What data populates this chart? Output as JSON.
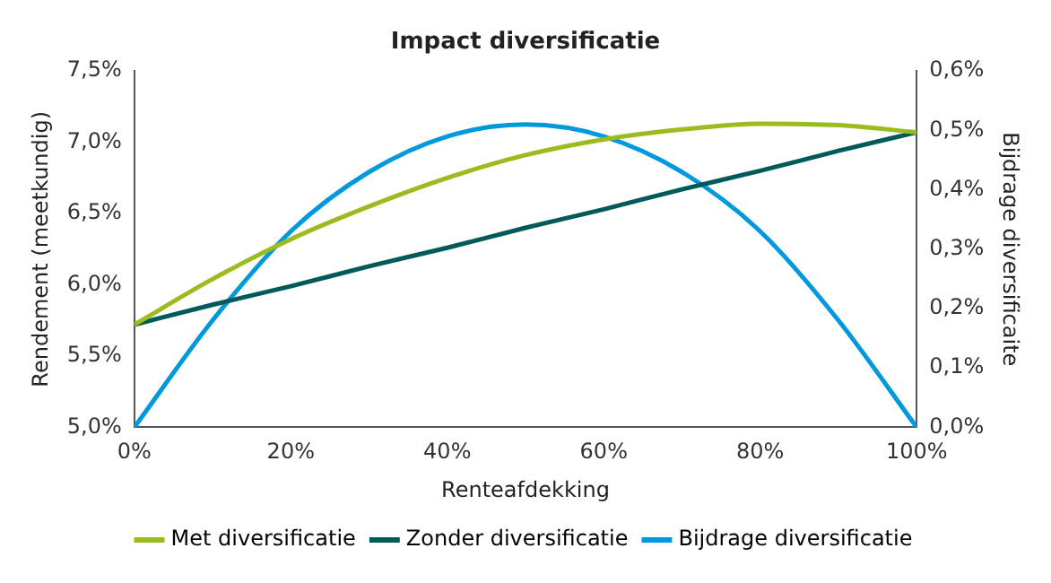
{
  "chart_data": {
    "type": "line",
    "title": "Impact diversificatie",
    "xlabel": "Renteafdekking",
    "ylabel": "Rendement (meetkundig)",
    "y2label": "Bijdrage diversificaite",
    "x": [
      0,
      10,
      20,
      30,
      40,
      50,
      60,
      70,
      80,
      90,
      100
    ],
    "xlim": [
      0,
      100
    ],
    "xticks": [
      {
        "value": 0,
        "label": "0%"
      },
      {
        "value": 20,
        "label": "20%"
      },
      {
        "value": 40,
        "label": "40%"
      },
      {
        "value": 60,
        "label": "60%"
      },
      {
        "value": 80,
        "label": "80%"
      },
      {
        "value": 100,
        "label": "100%"
      }
    ],
    "ylim": [
      5,
      7.5
    ],
    "yticks": [
      {
        "value": 5,
        "label": "5,0%"
      },
      {
        "value": 5.5,
        "label": "5,5%"
      },
      {
        "value": 6,
        "label": "6,0%"
      },
      {
        "value": 6.5,
        "label": "6,5%"
      },
      {
        "value": 7,
        "label": "7,0%"
      },
      {
        "value": 7.5,
        "label": "7,5%"
      }
    ],
    "y2lim": [
      0,
      0.6
    ],
    "y2ticks": [
      {
        "value": 0,
        "label": "0,0%"
      },
      {
        "value": 0.1,
        "label": "0,1%"
      },
      {
        "value": 0.2,
        "label": "0,2%"
      },
      {
        "value": 0.3,
        "label": "0,3%"
      },
      {
        "value": 0.4,
        "label": "0,4%"
      },
      {
        "value": 0.5,
        "label": "0,5%"
      },
      {
        "value": 0.6,
        "label": "0,6%"
      }
    ],
    "series": [
      {
        "name": "Met diversificatie",
        "color": "#9bbb1e",
        "values": [
          5.72,
          6.04,
          6.32,
          6.55,
          6.75,
          6.91,
          7.02,
          7.09,
          7.13,
          7.12,
          7.07
        ]
      },
      {
        "name": "Zonder diversificatie",
        "color": "#005a5a",
        "values": [
          5.72,
          5.86,
          5.99,
          6.13,
          6.26,
          6.4,
          6.53,
          6.67,
          6.8,
          6.94,
          7.07
        ]
      },
      {
        "name": "Bijdrage diversificatie",
        "color": "#0099dd",
        "axis": "y2",
        "values": [
          0,
          0.18,
          0.33,
          0.43,
          0.49,
          0.51,
          0.49,
          0.43,
          0.33,
          0.18,
          0
        ]
      }
    ],
    "grid": false,
    "legend": "bottom",
    "marker": "none",
    "line_style": "solid"
  }
}
